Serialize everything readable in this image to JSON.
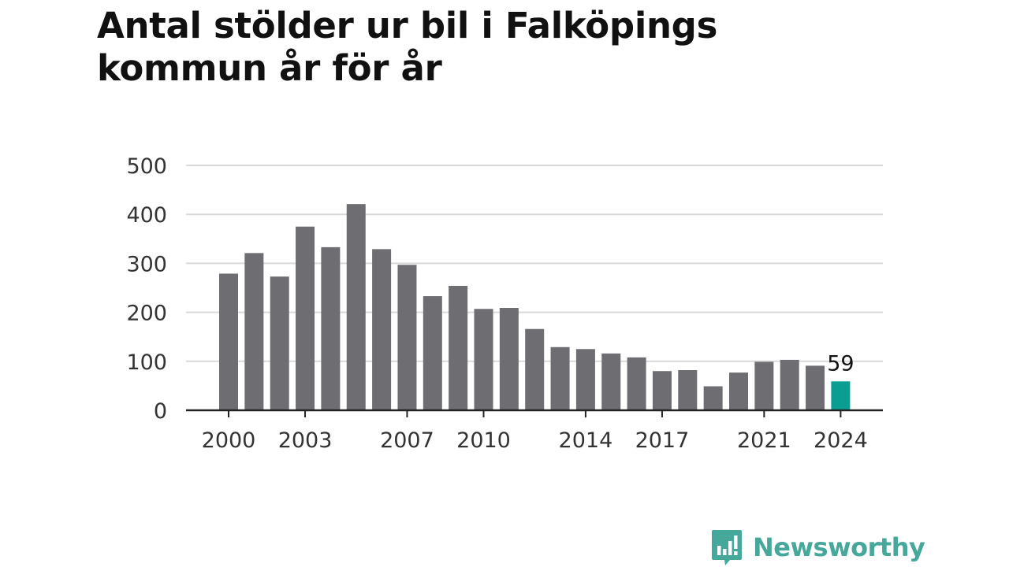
{
  "title": "Antal stölder ur bil i Falköpings kommun år för år",
  "brand": {
    "name": "Newsworthy",
    "color": "#46a79b"
  },
  "colors": {
    "bar": "#6e6d72",
    "highlight": "#0a9e92",
    "grid": "#d9d9d9",
    "axis": "#222222"
  },
  "chart_data": {
    "type": "bar",
    "title": "Antal stölder ur bil i Falköpings kommun år för år",
    "xlabel": "",
    "ylabel": "",
    "categories": [
      "2000",
      "2001",
      "2002",
      "2003",
      "2004",
      "2005",
      "2006",
      "2007",
      "2008",
      "2009",
      "2010",
      "2011",
      "2012",
      "2013",
      "2014",
      "2015",
      "2016",
      "2017",
      "2018",
      "2019",
      "2020",
      "2021",
      "2022",
      "2023",
      "2024"
    ],
    "values": [
      279,
      321,
      273,
      375,
      333,
      421,
      329,
      297,
      233,
      254,
      207,
      209,
      166,
      129,
      125,
      116,
      108,
      80,
      82,
      49,
      77,
      99,
      103,
      91,
      59
    ],
    "highlight_category": "2024",
    "ylim": [
      0,
      500
    ],
    "y_ticks": [
      0,
      100,
      200,
      300,
      400,
      500
    ],
    "x_tick_labels": [
      "2000",
      "2003",
      "2007",
      "2010",
      "2014",
      "2017",
      "2021",
      "2024"
    ],
    "annotations": [
      {
        "category": "2024",
        "text": "59"
      }
    ],
    "grid": true,
    "legend": "none"
  }
}
